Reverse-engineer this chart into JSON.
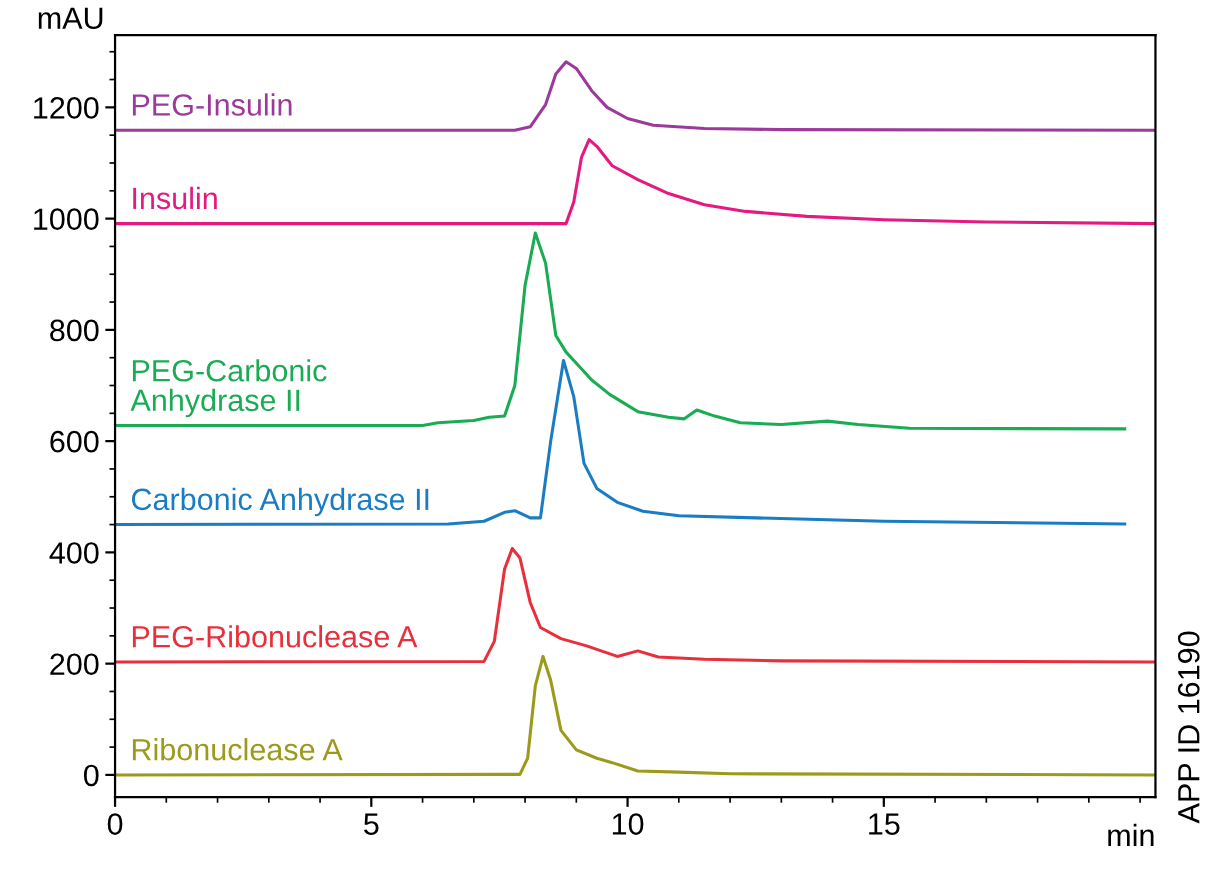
{
  "chart_data": {
    "type": "line",
    "xlabel": "min",
    "ylabel": "mAU",
    "xlim": [
      0,
      20.3
    ],
    "ylim": [
      -40,
      1330
    ],
    "xticks": [
      0,
      5,
      10,
      15
    ],
    "yticks": [
      0,
      200,
      400,
      600,
      800,
      1000,
      1200
    ],
    "grid": false,
    "legend": false,
    "marker": "none",
    "line_style": "solid",
    "annotations": [
      "APP ID 16190"
    ],
    "series": [
      {
        "name": "PEG-Insulin",
        "color": "#9b3a9b",
        "x": [
          0,
          7.8,
          8.1,
          8.4,
          8.6,
          8.8,
          9.0,
          9.3,
          9.6,
          10,
          10.5,
          11.5,
          13,
          20.3
        ],
        "values": [
          1159,
          1159,
          1165,
          1205,
          1260,
          1282,
          1270,
          1230,
          1200,
          1180,
          1168,
          1162,
          1160,
          1159
        ]
      },
      {
        "name": "Insulin",
        "color": "#e5197f",
        "x": [
          0,
          8.8,
          8.95,
          9.1,
          9.25,
          9.4,
          9.7,
          10.2,
          10.8,
          11.5,
          12.3,
          13.5,
          15,
          17,
          20.3
        ],
        "values": [
          991,
          991,
          1030,
          1110,
          1142,
          1130,
          1095,
          1070,
          1045,
          1025,
          1013,
          1004,
          998,
          994,
          991
        ]
      },
      {
        "name": "PEG-Carbonic\nAnhydrase II",
        "color": "#1aab55",
        "x": [
          0,
          6,
          6.3,
          7.0,
          7.3,
          7.6,
          7.8,
          8.0,
          8.2,
          8.4,
          8.6,
          8.8,
          9.05,
          9.3,
          9.65,
          10.2,
          10.8,
          11.1,
          11.35,
          11.7,
          12.2,
          13,
          13.9,
          14.5,
          15.5,
          19.7
        ],
        "values": [
          628,
          628,
          633,
          637,
          643,
          645,
          700,
          880,
          974,
          920,
          790,
          760,
          735,
          710,
          684,
          653,
          643,
          640,
          656,
          645,
          633,
          630,
          636,
          630,
          623,
          622
        ]
      },
      {
        "name": "Carbonic Anhydrase II",
        "color": "#1a7dc4",
        "x": [
          0,
          6.5,
          7.2,
          7.6,
          7.8,
          8.1,
          8.3,
          8.5,
          8.75,
          8.95,
          9.15,
          9.4,
          9.8,
          10.3,
          11,
          12.5,
          15,
          19.7
        ],
        "values": [
          450,
          451,
          456,
          472,
          475,
          462,
          462,
          600,
          745,
          680,
          560,
          515,
          490,
          474,
          466,
          462,
          456,
          451
        ]
      },
      {
        "name": "PEG-Ribonuclease A",
        "color": "#e8303c",
        "x": [
          0,
          7.2,
          7.4,
          7.6,
          7.75,
          7.9,
          8.1,
          8.3,
          8.7,
          9.2,
          9.8,
          10.2,
          10.6,
          11.5,
          13,
          20.3
        ],
        "values": [
          203,
          204,
          240,
          370,
          407,
          390,
          310,
          265,
          245,
          232,
          213,
          223,
          212,
          208,
          205,
          203
        ]
      },
      {
        "name": "Ribonuclease A",
        "color": "#9c9a1a",
        "x": [
          0,
          7.9,
          8.05,
          8.2,
          8.35,
          8.5,
          8.7,
          9.0,
          9.4,
          9.7,
          10.2,
          11,
          12,
          20.3
        ],
        "values": [
          0,
          1,
          30,
          160,
          213,
          170,
          80,
          45,
          30,
          22,
          7,
          5,
          2,
          0
        ]
      }
    ]
  }
}
